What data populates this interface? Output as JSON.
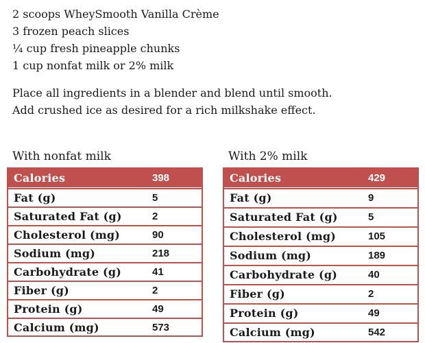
{
  "recipe": {
    "ingredients": [
      "2 scoops WheySmooth Vanilla Crème",
      "3 frozen peach slices",
      "¼ cup fresh pineapple chunks",
      "1 cup nonfat milk or 2% milk"
    ],
    "instructions": [
      "Place all ingredients in a blender and blend until smooth.",
      "Add crushed ice as desired for a rich milkshake effect."
    ]
  },
  "colors": {
    "accent_red": "#c0504d",
    "header_text": "#ffffff",
    "body_text": "#1a1a1a"
  },
  "tables": [
    {
      "title": "With nonfat milk",
      "header": {
        "label": "Calories",
        "value": "398"
      },
      "rows": [
        {
          "label": "Fat (g)",
          "value": "5"
        },
        {
          "label": "Saturated Fat (g)",
          "value": "2"
        },
        {
          "label": "Cholesterol (mg)",
          "value": "90"
        },
        {
          "label": "Sodium (mg)",
          "value": "218"
        },
        {
          "label": "Carbohydrate (g)",
          "value": "41"
        },
        {
          "label": "Fiber (g)",
          "value": "2"
        },
        {
          "label": "Protein (g)",
          "value": "49"
        },
        {
          "label": "Calcium (mg)",
          "value": "573"
        }
      ]
    },
    {
      "title": "With 2% milk",
      "header": {
        "label": "Calories",
        "value": "429"
      },
      "rows": [
        {
          "label": "Fat (g)",
          "value": "9"
        },
        {
          "label": "Saturated Fat (g)",
          "value": "5"
        },
        {
          "label": "Cholesterol (mg)",
          "value": "105"
        },
        {
          "label": "Sodium (mg)",
          "value": "189"
        },
        {
          "label": "Carbohydrate (g)",
          "value": "40"
        },
        {
          "label": "Fiber (g)",
          "value": "2"
        },
        {
          "label": "Protein (g)",
          "value": "49"
        },
        {
          "label": "Calcium (mg)",
          "value": "542"
        }
      ]
    }
  ]
}
